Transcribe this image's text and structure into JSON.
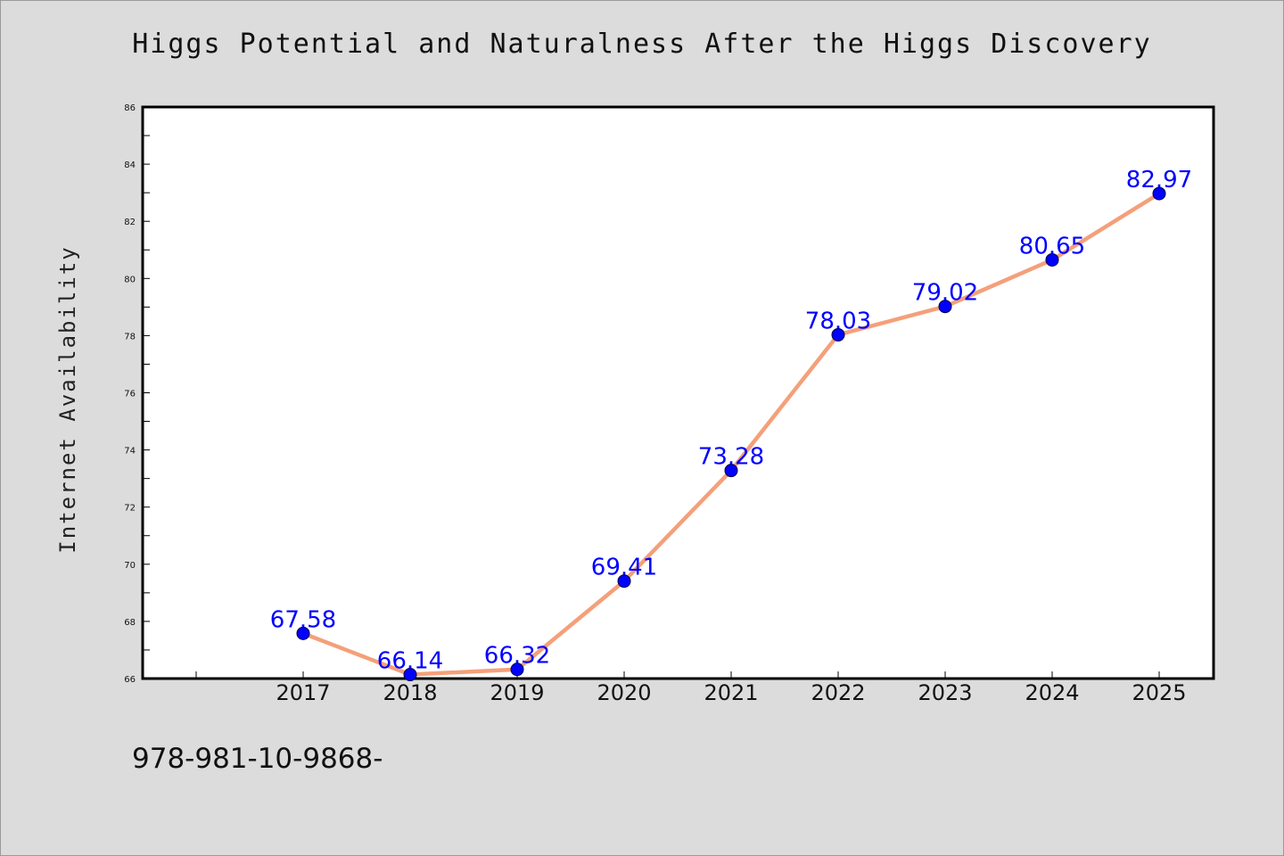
{
  "chart_data": {
    "type": "line",
    "title": "Higgs Potential and Naturalness After the Higgs Discovery",
    "xlabel": "",
    "ylabel": "Internet Availability",
    "categories": [
      "2017",
      "2018",
      "2019",
      "2020",
      "2021",
      "2022",
      "2023",
      "2024",
      "2025"
    ],
    "series": [
      {
        "values": [
          67.58,
          66.14,
          66.32,
          69.41,
          73.28,
          78.03,
          79.02,
          80.65,
          82.97
        ],
        "labels": [
          "67.58",
          "66.14",
          "66.32",
          "69.41",
          "73.28",
          "78.03",
          "79.02",
          "80.65",
          "82.97"
        ],
        "line_color": "#f4a07a",
        "marker_color": "#0000ff"
      }
    ],
    "ylim": [
      66,
      86
    ],
    "yticks": [
      "66",
      "68",
      "70",
      "72",
      "74",
      "76",
      "78",
      "80",
      "82",
      "84",
      "86"
    ],
    "grid": false,
    "legend": "none"
  },
  "footnote": "978-981-10-9868-"
}
